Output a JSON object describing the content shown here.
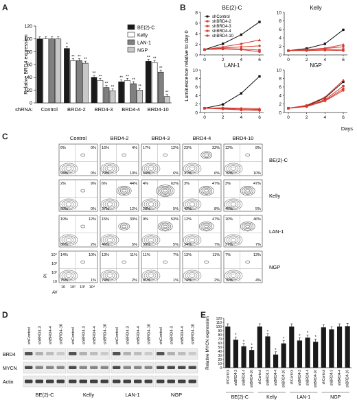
{
  "panels": {
    "A": "A",
    "B": "B",
    "C": "C",
    "D": "D",
    "E": "E"
  },
  "colors": {
    "bar_dark": "#1a1a1a",
    "bar_white": "#ffffff",
    "bar_gray": "#808080",
    "bar_light": "#c8c8c8",
    "sh_control": "#111111",
    "red_line": "#d43a2f"
  },
  "chart_data": [
    {
      "type": "bar",
      "panel": "A",
      "ylabel": "Relative BRD4 expression",
      "xlabel": "shRNA:",
      "categories": [
        "Control",
        "BRD4-2",
        "BRD4-3",
        "BRD4-4",
        "BRD4-10"
      ],
      "ylim": [
        0,
        120
      ],
      "yticks": [
        "0",
        "20",
        "40",
        "60",
        "80",
        "100",
        "120"
      ],
      "series": [
        {
          "name": "BE(2)-C",
          "values": [
            100,
            85,
            40,
            33,
            65
          ],
          "labels": [
            "",
            "*",
            "**",
            "**",
            "**"
          ]
        },
        {
          "name": "Kelly",
          "values": [
            100,
            66,
            35,
            35,
            63
          ],
          "labels": [
            "",
            "**",
            "**",
            "**",
            "**"
          ]
        },
        {
          "name": "LAN-1",
          "values": [
            100,
            66,
            24,
            30,
            48
          ],
          "labels": [
            "",
            "**",
            "**",
            "**",
            "**"
          ]
        },
        {
          "name": "NGP",
          "values": [
            100,
            62,
            19,
            20,
            10
          ],
          "labels": [
            "",
            "**",
            "**",
            "**",
            "**"
          ]
        }
      ],
      "legend": "top-right"
    },
    {
      "type": "line",
      "panel": "B",
      "ylabel": "Luminescence relative to day 0",
      "xlabel": "Days",
      "legend": [
        "shControl",
        "shBRD4-2",
        "shBRD4-3",
        "shBRD4-4",
        "shBRD4-10"
      ],
      "subplots": [
        {
          "title": "BE(2)-C",
          "x": [
            0,
            2,
            4,
            6
          ],
          "ylim": [
            0,
            8
          ],
          "yticks": [
            "0",
            "2",
            "4",
            "6",
            "8"
          ],
          "series": [
            [
              1,
              2.1,
              3.8,
              6.2
            ],
            [
              1,
              1.5,
              2.1,
              2.8
            ],
            [
              1,
              1.2,
              1.1,
              0.9
            ],
            [
              1,
              1.1,
              1.0,
              0.6
            ],
            [
              1,
              1.3,
              1.5,
              1.7
            ]
          ]
        },
        {
          "title": "Kelly",
          "x": [
            0,
            2,
            4,
            6
          ],
          "ylim": [
            0,
            10
          ],
          "yticks": [
            "0",
            "2",
            "4",
            "6",
            "8",
            "10"
          ],
          "series": [
            [
              1,
              1.5,
              2.6,
              5.9
            ],
            [
              1,
              1.2,
              1.6,
              2.4
            ],
            [
              1,
              1.1,
              1.2,
              1.3
            ],
            [
              1,
              1.0,
              1.1,
              1.0
            ],
            [
              1,
              1.2,
              1.5,
              1.9
            ]
          ]
        },
        {
          "title": "LAN-1",
          "x": [
            0,
            2,
            4,
            6
          ],
          "ylim": [
            0,
            10
          ],
          "yticks": [
            "0",
            "2",
            "4",
            "6",
            "8",
            "10"
          ],
          "series": [
            [
              1,
              1.9,
              4.5,
              8.5
            ],
            [
              1,
              1.1,
              1.0,
              0.9
            ],
            [
              1,
              1.0,
              0.8,
              0.7
            ],
            [
              1,
              0.9,
              0.6,
              0.5
            ],
            [
              1,
              0.8,
              0.6,
              0.5
            ]
          ]
        },
        {
          "title": "NGP",
          "x": [
            0,
            2,
            4,
            6
          ],
          "ylim": [
            0,
            10
          ],
          "yticks": [
            "0",
            "2",
            "4",
            "6",
            "8",
            "10"
          ],
          "series": [
            [
              1,
              1.6,
              3.4,
              7.2
            ],
            [
              1,
              1.7,
              3.6,
              7.6
            ],
            [
              1,
              1.5,
              3.0,
              6.2
            ],
            [
              1,
              1.4,
              2.8,
              5.6
            ],
            [
              1,
              1.4,
              2.7,
              5.2
            ]
          ]
        }
      ]
    },
    {
      "type": "table",
      "panel": "C",
      "columns": [
        "Control",
        "BRD4-2",
        "BRD4-3",
        "BRD4-4",
        "BRD4-10"
      ],
      "rows": [
        {
          "name": "BE(2)-C",
          "cells": [
            [
              "6%",
              "0%",
              "93%",
              "0%"
            ],
            [
              "16%",
              "4%",
              "70%",
              "10%"
            ],
            [
              "17%",
              "12%",
              "64%",
              "6%"
            ],
            [
              "23%",
              "33%",
              "37%",
              "6%"
            ],
            [
              "12%",
              "8%",
              "70%",
              "10%"
            ]
          ]
        },
        {
          "name": "Kelly",
          "cells": [
            [
              "2%",
              "9%",
              "89%",
              "0%"
            ],
            [
              "6%",
              "44%",
              "37%",
              "12%"
            ],
            [
              "4%",
              "62%",
              "28%",
              "5%"
            ],
            [
              "3%",
              "47%",
              "42%",
              "8%"
            ],
            [
              "3%",
              "47%",
              "45%",
              "5%"
            ]
          ]
        },
        {
          "name": "LAN-1",
          "cells": [
            [
              "19%",
              "12%",
              "86%",
              "2%"
            ],
            [
              "15%",
              "33%",
              "46%",
              "5%"
            ],
            [
              "9%",
              "53%",
              "33%",
              "5%"
            ],
            [
              "12%",
              "47%",
              "34%",
              "7%"
            ],
            [
              "10%",
              "46%",
              "37%",
              "7%"
            ]
          ]
        },
        {
          "name": "NGP",
          "cells": [
            [
              "14%",
              "10%",
              "75%",
              "1%"
            ],
            [
              "13%",
              "11%",
              "74%",
              "2%"
            ],
            [
              "11%",
              "7%",
              "81%",
              "1%"
            ],
            [
              "13%",
              "11%",
              "74%",
              "2%"
            ],
            [
              "7%",
              "13%",
              "76%",
              "4%"
            ]
          ]
        }
      ],
      "y_axis": "PI",
      "x_axis": "AV",
      "axis_ticks": [
        "10",
        "10²",
        "10³",
        "10⁴"
      ]
    },
    {
      "type": "table",
      "panel": "D",
      "lane_labels": [
        "shControl",
        "shBRD4-3",
        "shBRD4-4",
        "shBRD4-10"
      ],
      "groups": [
        "BE(2)-C",
        "Kelly",
        "LAN-1",
        "NGP"
      ],
      "bands": [
        "BRD4",
        "MYCN",
        "Actin"
      ]
    },
    {
      "type": "bar",
      "panel": "E",
      "ylabel": "Relative MYCN expression",
      "ylim": [
        0,
        120
      ],
      "yticks": [
        "0",
        "10",
        "20",
        "30",
        "40",
        "50",
        "60",
        "70",
        "80",
        "90",
        "100",
        "110",
        "120"
      ],
      "groups": [
        "BE(2)-C",
        "Kelly",
        "LAN-1",
        "NGP"
      ],
      "categories": [
        "shControl",
        "shBRD4-3",
        "shBRD4-4",
        "shBRD4-10",
        "shControl",
        "shBRD4-3",
        "shBRD4-4",
        "shBRD4-10",
        "shControl",
        "shBRD4-3",
        "shBRD4-4",
        "shBRD4-10",
        "shControl",
        "shBRD4-3",
        "shBRD4-4",
        "shBRD4-10"
      ],
      "values": [
        100,
        68,
        52,
        43,
        100,
        76,
        32,
        59,
        100,
        66,
        73,
        63,
        98,
        93,
        100,
        101
      ],
      "labels": [
        "",
        "*",
        "*",
        "*",
        "",
        "*",
        "*",
        "*",
        "",
        "*",
        "*",
        "*",
        "",
        "",
        "",
        ""
      ]
    }
  ]
}
